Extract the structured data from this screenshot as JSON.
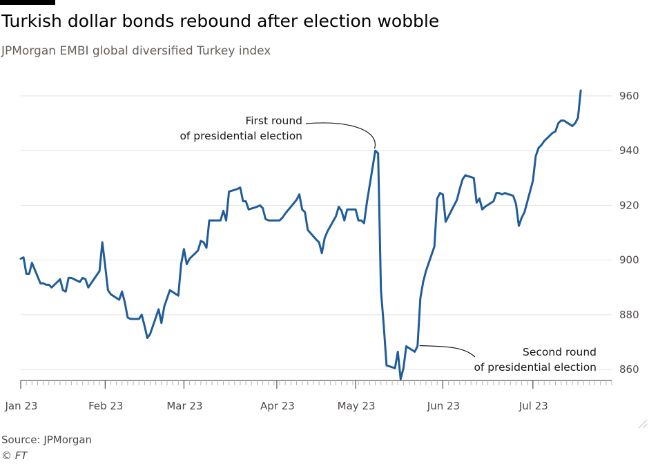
{
  "header": {
    "title": "Turkish dollar bonds rebound after election wobble",
    "subtitle": "JPMorgan EMBI global diversified Turkey index"
  },
  "footer": {
    "source": "Source: JPMorgan",
    "credit": "© FT"
  },
  "colors": {
    "line": "#1f5c99",
    "grid": "#e6e2dc",
    "axis": "#33302e",
    "text": "#4d4845"
  },
  "chart_data": {
    "type": "line",
    "title": "Turkish dollar bonds rebound after election wobble",
    "subtitle": "JPMorgan EMBI global diversified Turkey index",
    "xlabel": "",
    "ylabel": "",
    "x_range": [
      "2023-01-02",
      "2023-07-31"
    ],
    "ylim": [
      856,
      962
    ],
    "y_ticks": [
      860,
      880,
      900,
      920,
      940,
      960
    ],
    "y_axis_side": "right",
    "grid": true,
    "legend": "none",
    "x_ticks": [
      {
        "date": "2023-01-02",
        "label": "Jan 23"
      },
      {
        "date": "2023-02-01",
        "label": "Feb 23"
      },
      {
        "date": "2023-03-01",
        "label": "Mar 23"
      },
      {
        "date": "2023-04-03",
        "label": "Apr 23"
      },
      {
        "date": "2023-05-01",
        "label": "May 23"
      },
      {
        "date": "2023-06-01",
        "label": "Jun 23"
      },
      {
        "date": "2023-07-03",
        "label": "Jul 23"
      }
    ],
    "series": [
      {
        "values": [
          [
            "2023-01-02",
            900.5
          ],
          [
            "2023-01-03",
            901
          ],
          [
            "2023-01-04",
            895
          ],
          [
            "2023-01-05",
            895
          ],
          [
            "2023-01-06",
            899
          ],
          [
            "2023-01-09",
            891.5
          ],
          [
            "2023-01-10",
            891.5
          ],
          [
            "2023-01-11",
            891
          ],
          [
            "2023-01-12",
            891
          ],
          [
            "2023-01-13",
            890
          ],
          [
            "2023-01-16",
            893
          ],
          [
            "2023-01-17",
            889
          ],
          [
            "2023-01-18",
            888.5
          ],
          [
            "2023-01-19",
            893.5
          ],
          [
            "2023-01-20",
            893.5
          ],
          [
            "2023-01-23",
            892
          ],
          [
            "2023-01-24",
            893.5
          ],
          [
            "2023-01-25",
            893
          ],
          [
            "2023-01-26",
            890
          ],
          [
            "2023-01-27",
            891.5
          ],
          [
            "2023-01-30",
            896
          ],
          [
            "2023-01-31",
            906.5
          ],
          [
            "2023-02-01",
            898
          ],
          [
            "2023-02-02",
            889
          ],
          [
            "2023-02-03",
            887.5
          ],
          [
            "2023-02-06",
            885.5
          ],
          [
            "2023-02-07",
            888.5
          ],
          [
            "2023-02-08",
            884.5
          ],
          [
            "2023-02-09",
            879
          ],
          [
            "2023-02-10",
            878.5
          ],
          [
            "2023-02-13",
            878.5
          ],
          [
            "2023-02-14",
            880
          ],
          [
            "2023-02-15",
            876
          ],
          [
            "2023-02-16",
            871.5
          ],
          [
            "2023-02-17",
            873
          ],
          [
            "2023-02-20",
            882
          ],
          [
            "2023-02-21",
            877
          ],
          [
            "2023-02-22",
            883
          ],
          [
            "2023-02-23",
            886
          ],
          [
            "2023-02-24",
            889
          ],
          [
            "2023-02-27",
            887
          ],
          [
            "2023-02-28",
            898.5
          ],
          [
            "2023-03-01",
            904
          ],
          [
            "2023-03-02",
            898.5
          ],
          [
            "2023-03-03",
            900.5
          ],
          [
            "2023-03-06",
            903.5
          ],
          [
            "2023-03-07",
            907
          ],
          [
            "2023-03-08",
            906.5
          ],
          [
            "2023-03-09",
            904.5
          ],
          [
            "2023-03-10",
            914.5
          ],
          [
            "2023-03-13",
            914.5
          ],
          [
            "2023-03-14",
            914.5
          ],
          [
            "2023-03-15",
            918
          ],
          [
            "2023-03-16",
            914.5
          ],
          [
            "2023-03-17",
            925
          ],
          [
            "2023-03-20",
            926
          ],
          [
            "2023-03-21",
            926.5
          ],
          [
            "2023-03-22",
            921.5
          ],
          [
            "2023-03-23",
            921.5
          ],
          [
            "2023-03-24",
            918.5
          ],
          [
            "2023-03-27",
            919.5
          ],
          [
            "2023-03-28",
            920
          ],
          [
            "2023-03-29",
            919
          ],
          [
            "2023-03-30",
            915
          ],
          [
            "2023-03-31",
            914.5
          ],
          [
            "2023-04-04",
            914.5
          ],
          [
            "2023-04-05",
            915.5
          ],
          [
            "2023-04-06",
            917
          ],
          [
            "2023-04-10",
            922
          ],
          [
            "2023-04-11",
            924
          ],
          [
            "2023-04-12",
            918.5
          ],
          [
            "2023-04-13",
            917.5
          ],
          [
            "2023-04-14",
            911
          ],
          [
            "2023-04-17",
            907.5
          ],
          [
            "2023-04-18",
            906.5
          ],
          [
            "2023-04-19",
            902.5
          ],
          [
            "2023-04-20",
            908
          ],
          [
            "2023-04-21",
            910.5
          ],
          [
            "2023-04-24",
            916
          ],
          [
            "2023-04-25",
            919.5
          ],
          [
            "2023-04-26",
            918
          ],
          [
            "2023-04-27",
            914.5
          ],
          [
            "2023-04-28",
            918.5
          ],
          [
            "2023-05-01",
            918.5
          ],
          [
            "2023-05-02",
            914.5
          ],
          [
            "2023-05-03",
            914.5
          ],
          [
            "2023-05-04",
            913.5
          ],
          [
            "2023-05-05",
            921
          ],
          [
            "2023-05-08",
            940
          ],
          [
            "2023-05-09",
            939
          ],
          [
            "2023-05-10",
            889
          ],
          [
            "2023-05-11",
            876
          ],
          [
            "2023-05-12",
            861.5
          ],
          [
            "2023-05-15",
            860.5
          ],
          [
            "2023-05-16",
            866.5
          ],
          [
            "2023-05-17",
            856.5
          ],
          [
            "2023-05-18",
            860.5
          ],
          [
            "2023-05-19",
            868.5
          ],
          [
            "2023-05-22",
            866.5
          ],
          [
            "2023-05-23",
            868.5
          ],
          [
            "2023-05-24",
            886
          ],
          [
            "2023-05-25",
            892
          ],
          [
            "2023-05-26",
            896
          ],
          [
            "2023-05-29",
            905
          ],
          [
            "2023-05-30",
            922.5
          ],
          [
            "2023-05-31",
            924.5
          ],
          [
            "2023-06-01",
            924
          ],
          [
            "2023-06-02",
            914
          ],
          [
            "2023-06-05",
            920
          ],
          [
            "2023-06-06",
            922
          ],
          [
            "2023-06-07",
            926
          ],
          [
            "2023-06-08",
            929.5
          ],
          [
            "2023-06-09",
            931
          ],
          [
            "2023-06-12",
            930
          ],
          [
            "2023-06-13",
            921
          ],
          [
            "2023-06-14",
            922.5
          ],
          [
            "2023-06-15",
            918.5
          ],
          [
            "2023-06-16",
            919.5
          ],
          [
            "2023-06-19",
            921.5
          ],
          [
            "2023-06-20",
            924.5
          ],
          [
            "2023-06-21",
            924.5
          ],
          [
            "2023-06-22",
            924
          ],
          [
            "2023-06-23",
            924.5
          ],
          [
            "2023-06-26",
            923.5
          ],
          [
            "2023-06-27",
            920.5
          ],
          [
            "2023-06-28",
            912.5
          ],
          [
            "2023-06-29",
            915.5
          ],
          [
            "2023-06-30",
            917.5
          ],
          [
            "2023-07-03",
            929
          ],
          [
            "2023-07-04",
            938
          ],
          [
            "2023-07-05",
            941
          ],
          [
            "2023-07-06",
            942
          ],
          [
            "2023-07-07",
            943.5
          ],
          [
            "2023-07-10",
            946.5
          ],
          [
            "2023-07-11",
            947
          ],
          [
            "2023-07-12",
            950
          ],
          [
            "2023-07-13",
            951
          ],
          [
            "2023-07-14",
            951
          ],
          [
            "2023-07-17",
            949
          ],
          [
            "2023-07-18",
            950
          ],
          [
            "2023-07-19",
            952
          ],
          [
            "2023-07-20",
            962
          ]
        ]
      }
    ],
    "annotations": [
      {
        "lines": [
          "First round",
          "of presidential election"
        ],
        "date": "2023-05-08",
        "value": 940
      },
      {
        "lines": [
          "Second round",
          "of presidential election"
        ],
        "date": "2023-05-23",
        "value": 868.5
      }
    ]
  }
}
